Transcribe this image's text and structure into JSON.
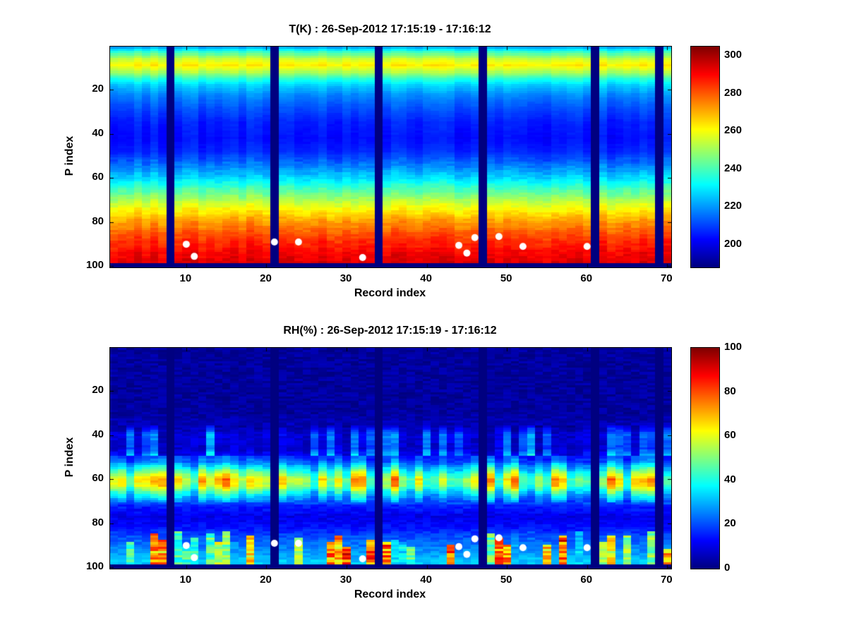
{
  "figure": {
    "background": "#ffffff"
  },
  "markers": {
    "color": "#ffffff",
    "points": [
      {
        "record": 10,
        "p": 90
      },
      {
        "record": 11,
        "p": 95.5
      },
      {
        "record": 21,
        "p": 89
      },
      {
        "record": 24,
        "p": 89
      },
      {
        "record": 32,
        "p": 96
      },
      {
        "record": 44,
        "p": 90.5
      },
      {
        "record": 45,
        "p": 94
      },
      {
        "record": 46,
        "p": 87
      },
      {
        "record": 49,
        "p": 86.5
      },
      {
        "record": 52,
        "p": 91
      },
      {
        "record": 60,
        "p": 91
      }
    ]
  },
  "chart_data": [
    {
      "id": "temperature",
      "type": "heatmap",
      "title": "T(K) : 26-Sep-2012 17:15:19 - 17:16:12",
      "xlabel": "Record index",
      "ylabel": "P index",
      "x_range": [
        1,
        70
      ],
      "y_range": [
        1,
        100
      ],
      "y_direction": "down",
      "xticks": [
        10,
        20,
        30,
        40,
        50,
        60,
        70
      ],
      "yticks": [
        20,
        40,
        60,
        80,
        100
      ],
      "colormap": "jet",
      "clim": [
        188,
        305
      ],
      "colorbar_ticks": [
        300,
        280,
        260,
        240,
        220,
        200
      ],
      "missing_record_columns": [
        8,
        21,
        34,
        47,
        61,
        69
      ],
      "bottom_missing_rows": [
        99,
        100
      ],
      "profile": [
        [
          1,
          222
        ],
        [
          3,
          238
        ],
        [
          6,
          255
        ],
        [
          9,
          263
        ],
        [
          12,
          252
        ],
        [
          15,
          237
        ],
        [
          18,
          227
        ],
        [
          22,
          219
        ],
        [
          28,
          212
        ],
        [
          35,
          206
        ],
        [
          42,
          204
        ],
        [
          48,
          207
        ],
        [
          55,
          218
        ],
        [
          60,
          228
        ],
        [
          65,
          240
        ],
        [
          70,
          252
        ],
        [
          75,
          263
        ],
        [
          80,
          273
        ],
        [
          85,
          281
        ],
        [
          90,
          287
        ],
        [
          94,
          291
        ],
        [
          98,
          294
        ]
      ],
      "noise": {
        "cell": 5,
        "column": 5
      },
      "seed": 7
    },
    {
      "id": "humidity",
      "type": "heatmap",
      "title": "RH(%) : 26-Sep-2012 17:15:19 - 17:16:12",
      "xlabel": "Record index",
      "ylabel": "P index",
      "x_range": [
        1,
        70
      ],
      "y_range": [
        1,
        100
      ],
      "y_direction": "down",
      "xticks": [
        10,
        20,
        30,
        40,
        50,
        60,
        70
      ],
      "yticks": [
        20,
        40,
        60,
        80,
        100
      ],
      "colormap": "jet",
      "clim": [
        0,
        100
      ],
      "colorbar_ticks": [
        100,
        80,
        60,
        40,
        20,
        0
      ],
      "missing_record_columns": [
        8,
        21,
        34,
        47,
        61,
        69
      ],
      "bottom_missing_rows": [
        99,
        100
      ],
      "profile": [
        [
          1,
          3
        ],
        [
          30,
          3
        ],
        [
          36,
          6
        ],
        [
          40,
          13
        ],
        [
          46,
          11
        ],
        [
          52,
          22
        ],
        [
          56,
          40
        ],
        [
          60,
          58
        ],
        [
          63,
          54
        ],
        [
          67,
          34
        ],
        [
          72,
          16
        ],
        [
          77,
          10
        ],
        [
          82,
          14
        ],
        [
          86,
          20
        ],
        [
          92,
          26
        ],
        [
          97,
          32
        ]
      ],
      "noise": {
        "cell": 6,
        "column": 0
      },
      "seed": 11
    }
  ]
}
